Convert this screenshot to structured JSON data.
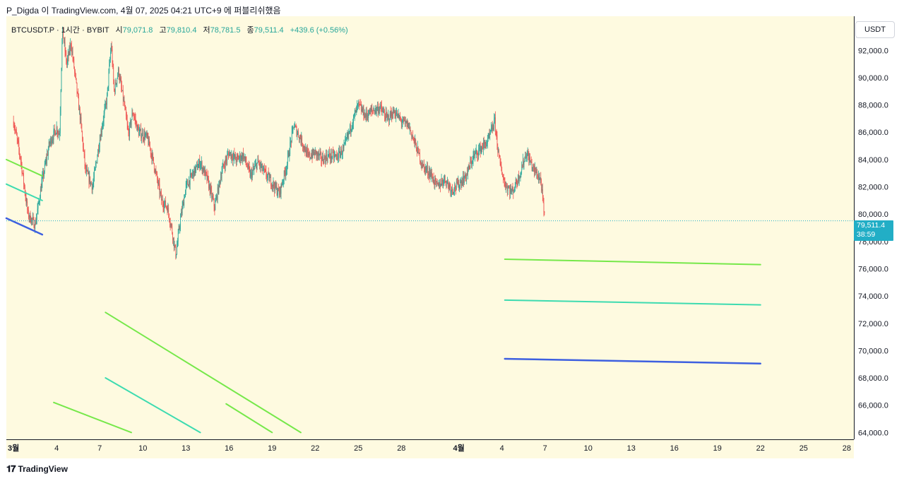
{
  "header": {
    "text": "P_Digda 이 TradingView.com, 4월 07, 2025 04:21 UTC+9 에 퍼블리쉬했음"
  },
  "legend": {
    "symbol": "BTCUSDT.P · 1시간 · BYBIT",
    "open_label": "시",
    "open": "79,071.8",
    "high_label": "고",
    "high": "79,810.4",
    "low_label": "저",
    "low": "78,781.5",
    "close_label": "종",
    "close": "79,511.4",
    "change": "+439.6 (+0.56%)"
  },
  "currency": "USDT",
  "last_price": {
    "price": "79,511.4",
    "countdown": "38:59"
  },
  "footer": {
    "brand": "TradingView",
    "logo_icon": "tradingview-logo-icon"
  },
  "colors": {
    "bg": "#fefae0",
    "up": "#26a69a",
    "down": "#ef5350",
    "green_line": "#76e84a",
    "teal_line": "#3ddbb0",
    "blue_line": "#3d5fe0",
    "last": "#22aec6"
  },
  "chart_data": {
    "type": "candlestick",
    "symbol": "BTCUSDT.P",
    "interval": "1시간",
    "exchange": "BYBIT",
    "ylim": [
      63500,
      94500
    ],
    "y_ticks": [
      "64,000.0",
      "66,000.0",
      "68,000.0",
      "70,000.0",
      "72,000.0",
      "74,000.0",
      "76,000.0",
      "78,000.0",
      "80,000.0",
      "82,000.0",
      "84,000.0",
      "86,000.0",
      "88,000.0",
      "90,000.0",
      "92,000.0"
    ],
    "y_tick_values": [
      64000,
      66000,
      68000,
      70000,
      72000,
      74000,
      76000,
      78000,
      80000,
      82000,
      84000,
      86000,
      88000,
      90000,
      92000
    ],
    "x_axis_start_day": -0.5,
    "x_axis_end_day": 58.5,
    "x_ticks": [
      {
        "label": "3월",
        "day": 0,
        "bold": true
      },
      {
        "label": "4",
        "day": 3
      },
      {
        "label": "7",
        "day": 6
      },
      {
        "label": "10",
        "day": 9
      },
      {
        "label": "13",
        "day": 12
      },
      {
        "label": "16",
        "day": 15
      },
      {
        "label": "19",
        "day": 18
      },
      {
        "label": "22",
        "day": 21
      },
      {
        "label": "25",
        "day": 24
      },
      {
        "label": "28",
        "day": 27
      },
      {
        "label": "4월",
        "day": 31,
        "bold": true
      },
      {
        "label": "4",
        "day": 34
      },
      {
        "label": "7",
        "day": 37
      },
      {
        "label": "10",
        "day": 40
      },
      {
        "label": "13",
        "day": 43
      },
      {
        "label": "16",
        "day": 46
      },
      {
        "label": "19",
        "day": 49
      },
      {
        "label": "22",
        "day": 52
      },
      {
        "label": "25",
        "day": 55
      },
      {
        "label": "28",
        "day": 58
      }
    ],
    "price_path": [
      [
        0,
        86800
      ],
      [
        0.5,
        84000
      ],
      [
        1,
        80000
      ],
      [
        1.5,
        79200
      ],
      [
        2,
        82500
      ],
      [
        2.5,
        85200
      ],
      [
        3,
        86300
      ],
      [
        3.2,
        85800
      ],
      [
        3.4,
        93500
      ],
      [
        3.7,
        91000
      ],
      [
        4,
        92500
      ],
      [
        4.3,
        90000
      ],
      [
        4.7,
        86500
      ],
      [
        5,
        83200
      ],
      [
        5.5,
        82000
      ],
      [
        6,
        85500
      ],
      [
        6.5,
        88500
      ],
      [
        6.8,
        92500
      ],
      [
        7,
        89000
      ],
      [
        7.3,
        90500
      ],
      [
        7.7,
        88000
      ],
      [
        8,
        85800
      ],
      [
        8.3,
        87500
      ],
      [
        8.7,
        86000
      ],
      [
        9,
        85800
      ],
      [
        9.3,
        85600
      ],
      [
        9.7,
        84000
      ],
      [
        10,
        82500
      ],
      [
        10.3,
        81000
      ],
      [
        10.7,
        80500
      ],
      [
        11,
        79000
      ],
      [
        11.3,
        77000
      ],
      [
        11.6,
        79500
      ],
      [
        12,
        82000
      ],
      [
        12.5,
        83000
      ],
      [
        13,
        83800
      ],
      [
        13.5,
        82500
      ],
      [
        14,
        80500
      ],
      [
        14.5,
        83200
      ],
      [
        15,
        84500
      ],
      [
        15.5,
        84000
      ],
      [
        16,
        84300
      ],
      [
        16.5,
        82800
      ],
      [
        17,
        83800
      ],
      [
        17.5,
        83000
      ],
      [
        18,
        82300
      ],
      [
        18.5,
        81500
      ],
      [
        19,
        83500
      ],
      [
        19.5,
        86500
      ],
      [
        20,
        85500
      ],
      [
        20.5,
        84200
      ],
      [
        21,
        84500
      ],
      [
        21.5,
        84000
      ],
      [
        22,
        84300
      ],
      [
        22.5,
        84200
      ],
      [
        23,
        84800
      ],
      [
        23.5,
        86500
      ],
      [
        24,
        88000
      ],
      [
        24.5,
        87200
      ],
      [
        25,
        87600
      ],
      [
        25.5,
        87800
      ],
      [
        26,
        87000
      ],
      [
        26.5,
        87500
      ],
      [
        27,
        86800
      ],
      [
        27.5,
        86500
      ],
      [
        28,
        85000
      ],
      [
        28.5,
        83500
      ],
      [
        29,
        83000
      ],
      [
        29.5,
        82000
      ],
      [
        30,
        82600
      ],
      [
        30.5,
        81800
      ],
      [
        31,
        82200
      ],
      [
        31.5,
        82800
      ],
      [
        32,
        84200
      ],
      [
        32.5,
        84800
      ],
      [
        33,
        85300
      ],
      [
        33.5,
        86800
      ],
      [
        33.8,
        84000
      ],
      [
        34.2,
        82200
      ],
      [
        34.7,
        81600
      ],
      [
        35.2,
        82800
      ],
      [
        35.7,
        84500
      ],
      [
        36.2,
        83300
      ],
      [
        36.7,
        82500
      ],
      [
        37,
        79300
      ]
    ],
    "series": [
      {
        "name": "green-line-right",
        "color": "#76e84a",
        "points": [
          [
            34.2,
            76700
          ],
          [
            52,
            76300
          ]
        ]
      },
      {
        "name": "teal-line-right",
        "color": "#3ddbb0",
        "points": [
          [
            34.2,
            73700
          ],
          [
            52,
            73350
          ]
        ]
      },
      {
        "name": "blue-line-right",
        "color": "#3d5fe0",
        "points": [
          [
            34.2,
            69400
          ],
          [
            52,
            69050
          ]
        ]
      },
      {
        "name": "green-line-left-a",
        "color": "#76e84a",
        "points": [
          [
            -0.5,
            84000
          ],
          [
            2.0,
            82800
          ]
        ]
      },
      {
        "name": "teal-line-left-a",
        "color": "#3ddbb0",
        "points": [
          [
            -0.5,
            82200
          ],
          [
            2.0,
            81000
          ]
        ]
      },
      {
        "name": "blue-line-left-a",
        "color": "#3d5fe0",
        "points": [
          [
            -0.5,
            79700
          ],
          [
            2.0,
            78500
          ]
        ]
      },
      {
        "name": "green-line-left-b",
        "color": "#76e84a",
        "points": [
          [
            6.4,
            72800
          ],
          [
            20,
            64000
          ]
        ]
      },
      {
        "name": "teal-line-left-b",
        "color": "#3ddbb0",
        "points": [
          [
            6.4,
            68000
          ],
          [
            13,
            64000
          ]
        ]
      },
      {
        "name": "green-line-left-c",
        "color": "#76e84a",
        "points": [
          [
            2.8,
            66200
          ],
          [
            8.2,
            64000
          ]
        ]
      },
      {
        "name": "green-line-left-d",
        "color": "#76e84a",
        "points": [
          [
            14.8,
            66100
          ],
          [
            18,
            64000
          ]
        ]
      }
    ],
    "last_price_value": 79511.4
  }
}
